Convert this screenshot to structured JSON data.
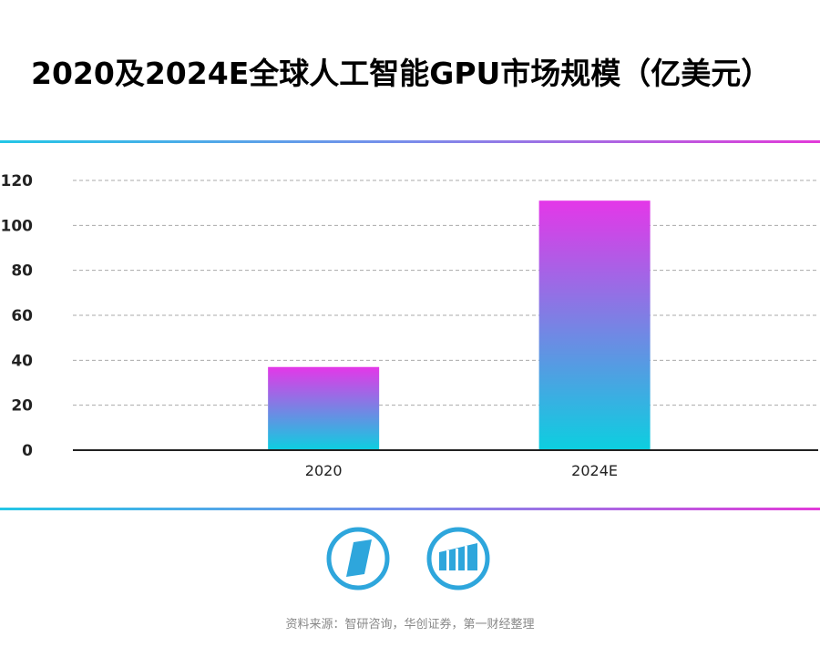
{
  "title": "2020及2024E全球人工智能GPU市场规模（亿美元）",
  "source": "资料来源：智研咨询，华创证券，第一财经整理",
  "colors": {
    "bar_top": "#e437e8",
    "bar_bottom": "#0ccfe0",
    "rule_left": "#23c6e6",
    "rule_right": "#e23ad9",
    "logo": "#2ea6dc"
  },
  "logos": [
    "diamond-logo-icon",
    "bar-chart-logo-icon"
  ],
  "chart_data": {
    "type": "bar",
    "title": "2020及2024E全球人工智能GPU市场规模（亿美元）",
    "categories": [
      "2020",
      "2024E"
    ],
    "values": [
      37,
      111
    ],
    "yticks": [
      "0",
      "20",
      "40",
      "60",
      "80",
      "100",
      "120"
    ],
    "ylim": [
      0,
      120
    ],
    "grid": true
  }
}
